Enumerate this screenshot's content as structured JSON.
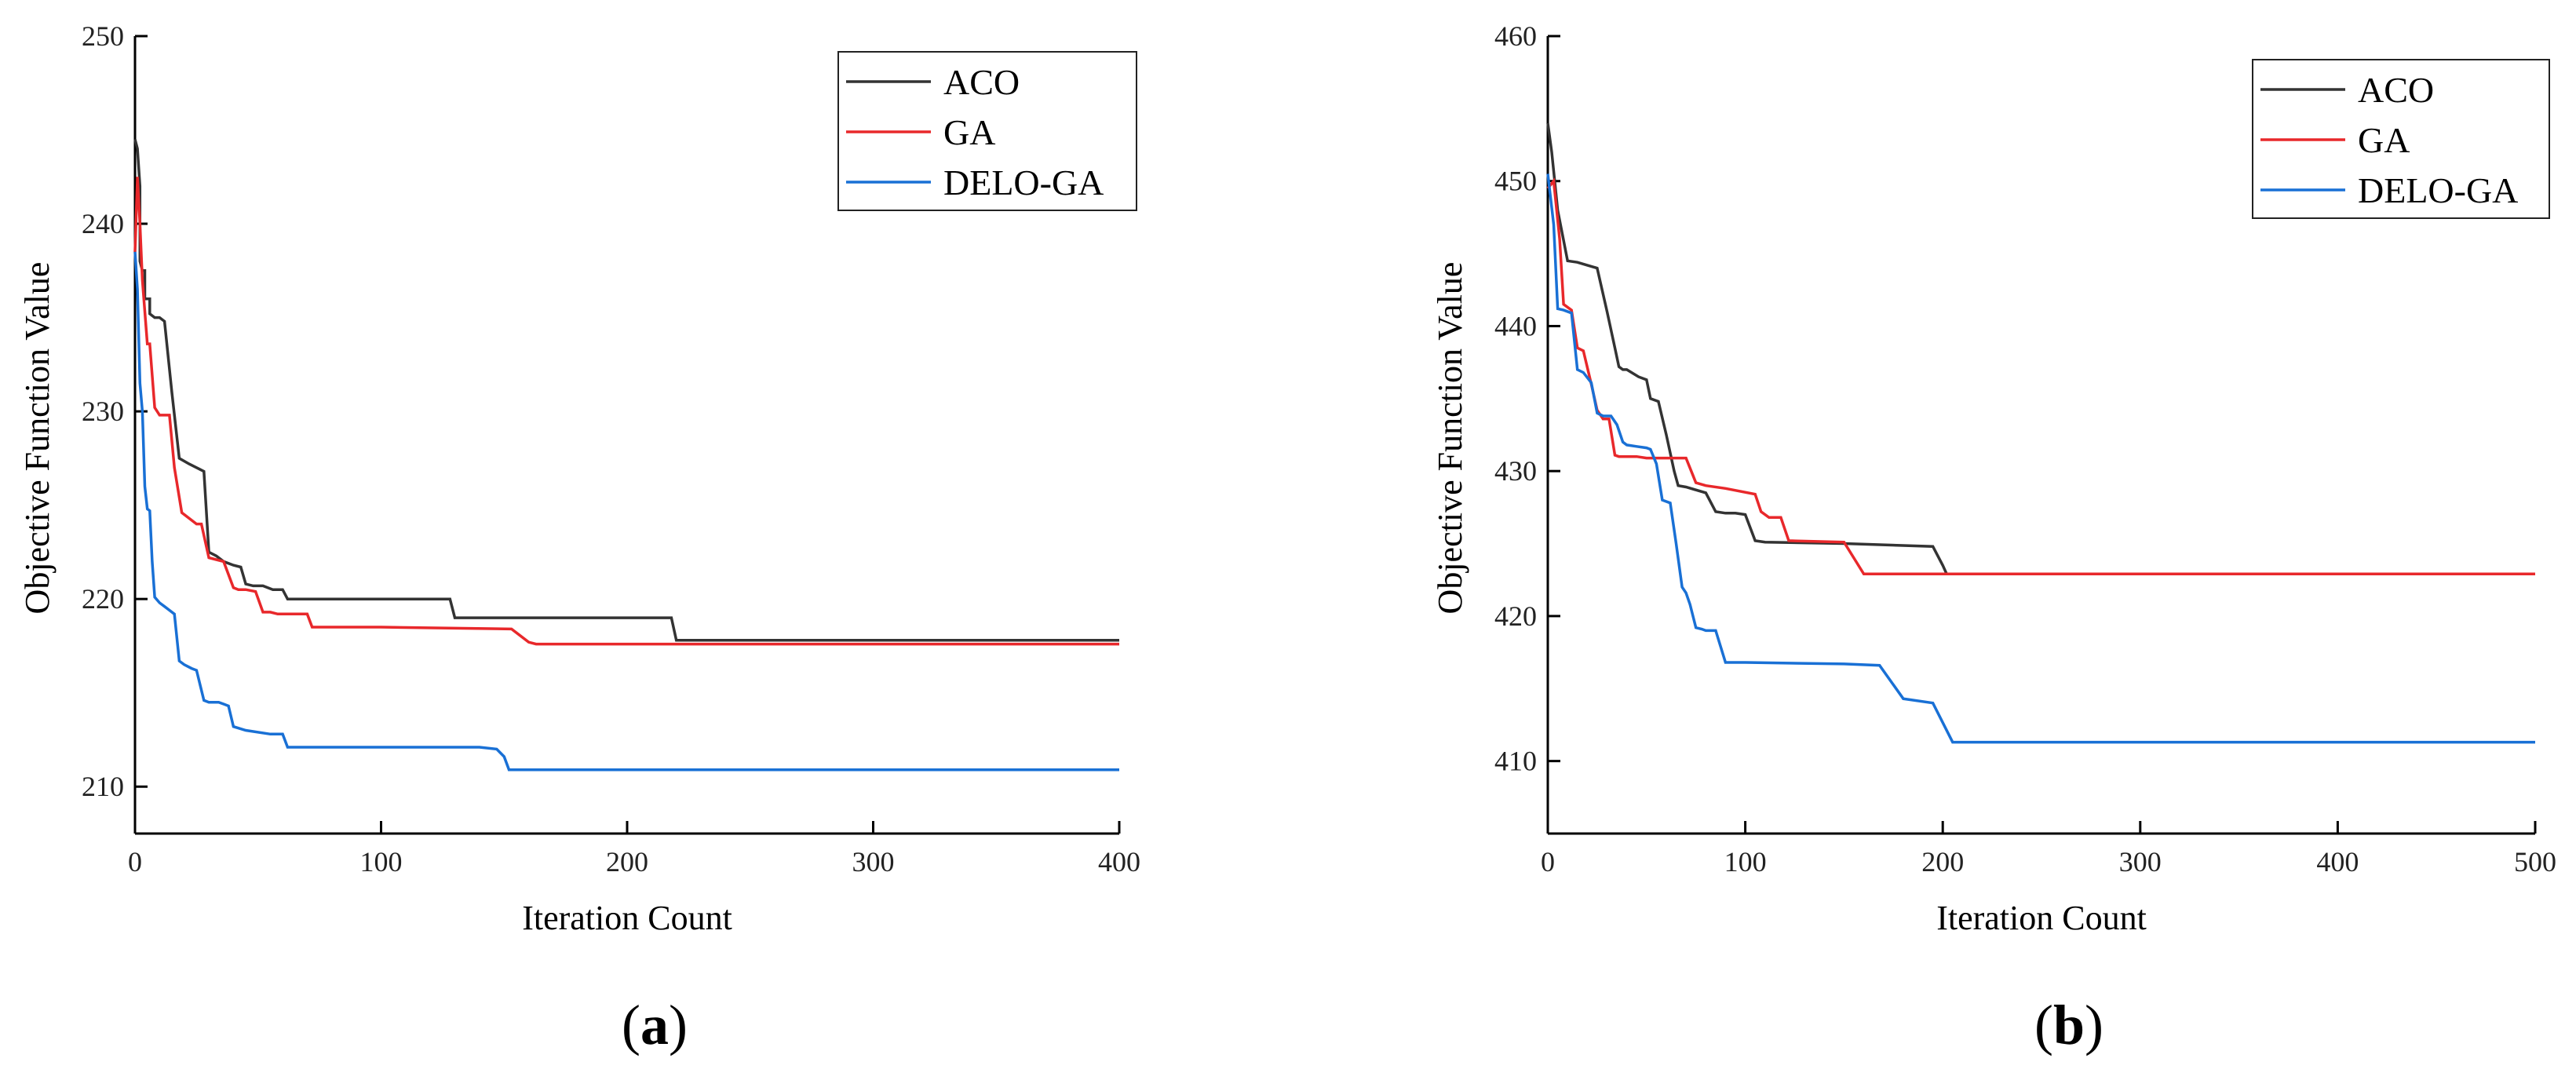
{
  "chart_data": [
    {
      "type": "line",
      "panel_label": "a",
      "xlabel": "Iteration Count",
      "ylabel": "Objective Function Value",
      "xlim": [
        0,
        400
      ],
      "ylim": [
        207.5,
        250
      ],
      "xticks": [
        0,
        100,
        200,
        300,
        400
      ],
      "yticks": [
        210,
        220,
        230,
        240,
        250
      ],
      "grid": false,
      "legend_position": "top-right",
      "series": [
        {
          "name": "ACO",
          "color": "#333333",
          "x": [
            0,
            1,
            2,
            2,
            3,
            4,
            4,
            6,
            6,
            8,
            10,
            12,
            15,
            18,
            22,
            25,
            28,
            30,
            33,
            36,
            40,
            43,
            45,
            48,
            52,
            56,
            58,
            60,
            62,
            65,
            70,
            100,
            128,
            130,
            133,
            150,
            200,
            218,
            220,
            300,
            400
          ],
          "y": [
            244.5,
            244,
            242,
            238,
            237.5,
            237.5,
            236,
            236,
            235.2,
            235,
            235,
            234.8,
            231,
            227.5,
            227.2,
            227,
            226.8,
            222.5,
            222.3,
            222,
            221.8,
            221.7,
            220.8,
            220.7,
            220.7,
            220.5,
            220.5,
            220.5,
            220,
            220,
            220,
            220,
            220,
            219,
            219,
            219,
            219,
            219,
            217.8,
            217.8,
            217.8
          ]
        },
        {
          "name": "GA",
          "color": "#e8282b",
          "x": [
            0,
            1,
            2,
            3,
            5,
            6,
            8,
            9,
            10,
            12,
            14,
            16,
            19,
            22,
            25,
            27,
            30,
            33,
            36,
            40,
            42,
            45,
            49,
            52,
            55,
            58,
            60,
            66,
            70,
            72,
            74,
            100,
            153,
            160,
            163,
            200,
            300,
            400
          ],
          "y": [
            238.5,
            242.5,
            240,
            237,
            233.6,
            233.6,
            230.2,
            230,
            229.8,
            229.8,
            229.8,
            227,
            224.6,
            224.3,
            224,
            224,
            222.2,
            222.1,
            222,
            220.6,
            220.5,
            220.5,
            220.4,
            219.3,
            219.3,
            219.2,
            219.2,
            219.2,
            219.2,
            218.5,
            218.5,
            218.5,
            218.4,
            217.7,
            217.6,
            217.6,
            217.6,
            217.6
          ]
        },
        {
          "name": "DELO-GA",
          "color": "#1970d5",
          "x": [
            0,
            1,
            2,
            3,
            4,
            5,
            6,
            7,
            8,
            10,
            12,
            14,
            16,
            18,
            20,
            23,
            25,
            28,
            30,
            34,
            36,
            38,
            40,
            45,
            55,
            60,
            62,
            90,
            110,
            140,
            147,
            150,
            152,
            200,
            300,
            400
          ],
          "y": [
            238.5,
            236.5,
            231.5,
            230,
            226,
            224.8,
            224.7,
            222,
            220.1,
            219.8,
            219.6,
            219.4,
            219.2,
            216.7,
            216.5,
            216.3,
            216.2,
            214.6,
            214.5,
            214.5,
            214.4,
            214.3,
            213.2,
            213,
            212.8,
            212.8,
            212.1,
            212.1,
            212.1,
            212.1,
            212,
            211.6,
            210.9,
            210.9,
            210.9,
            210.9
          ]
        }
      ]
    },
    {
      "type": "line",
      "panel_label": "b",
      "xlabel": "Iteration Count",
      "ylabel": "Objective Function Value",
      "xlim": [
        0,
        500
      ],
      "ylim": [
        405,
        460
      ],
      "xticks": [
        0,
        100,
        200,
        300,
        400,
        500
      ],
      "yticks": [
        410,
        420,
        430,
        440,
        450,
        460
      ],
      "grid": false,
      "legend_position": "top-right",
      "series": [
        {
          "name": "ACO",
          "color": "#333333",
          "x": [
            0,
            2,
            5,
            10,
            15,
            20,
            25,
            30,
            34,
            36,
            38,
            40,
            46,
            50,
            52,
            56,
            60,
            64,
            66,
            70,
            75,
            80,
            85,
            90,
            95,
            100,
            105,
            110,
            150,
            195,
            200,
            202,
            205,
            300,
            400,
            500
          ],
          "y": [
            454,
            452,
            448,
            444.5,
            444.4,
            444.2,
            444,
            441,
            438.5,
            437.2,
            437,
            437,
            436.5,
            436.3,
            435,
            434.8,
            432.5,
            430,
            429,
            428.9,
            428.7,
            428.5,
            427.2,
            427.1,
            427.1,
            427,
            425.2,
            425.1,
            425,
            424.8,
            423.5,
            422.9,
            422.9,
            422.9,
            422.9,
            422.9
          ]
        },
        {
          "name": "GA",
          "color": "#e8282b",
          "x": [
            0,
            3,
            6,
            8,
            12,
            15,
            18,
            22,
            25,
            28,
            31,
            34,
            36,
            40,
            45,
            50,
            55,
            60,
            65,
            70,
            75,
            80,
            90,
            105,
            108,
            112,
            118,
            122,
            150,
            155,
            160,
            200,
            300,
            400,
            500
          ],
          "y": [
            449.5,
            450,
            446,
            441.5,
            441.1,
            438.5,
            438.3,
            436,
            434.2,
            433.6,
            433.6,
            431.1,
            431,
            431,
            431,
            430.9,
            430.9,
            430.9,
            430.9,
            430.9,
            429.2,
            429,
            428.8,
            428.4,
            427.2,
            426.8,
            426.8,
            425.2,
            425.1,
            424,
            422.9,
            422.9,
            422.9,
            422.9,
            422.9
          ]
        },
        {
          "name": "DELO-GA",
          "color": "#1970d5",
          "x": [
            0,
            3,
            5,
            8,
            12,
            15,
            18,
            22,
            25,
            28,
            32,
            35,
            38,
            40,
            45,
            50,
            52,
            55,
            58,
            62,
            65,
            68,
            70,
            72,
            75,
            78,
            80,
            85,
            90,
            100,
            150,
            168,
            180,
            195,
            205,
            300,
            400,
            500
          ],
          "y": [
            450.5,
            447,
            441.2,
            441.1,
            440.9,
            437,
            436.8,
            436.1,
            434,
            433.8,
            433.8,
            433.2,
            432,
            431.8,
            431.7,
            431.6,
            431.5,
            430.5,
            428,
            427.8,
            425,
            422,
            421.6,
            420.8,
            419.2,
            419.1,
            419,
            419,
            416.8,
            416.8,
            416.7,
            416.6,
            414.3,
            414,
            411.3,
            411.3,
            411.3,
            411.3
          ]
        }
      ]
    }
  ]
}
